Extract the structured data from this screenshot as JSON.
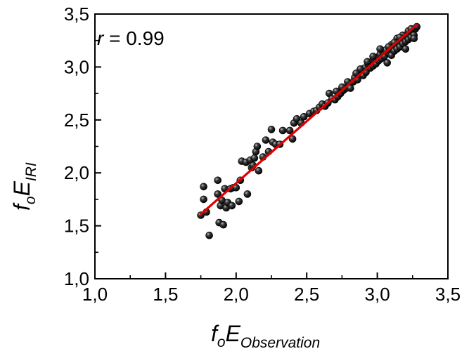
{
  "chart_data": {
    "type": "scatter",
    "title": "",
    "xlabel": {
      "main_f": "f",
      "sub_o": "o",
      "main_E": "E",
      "sub": "Observation"
    },
    "ylabel": {
      "main_f": "f",
      "sub_o": "o",
      "main_E": "E",
      "sub": "IRI"
    },
    "xlim": [
      1.0,
      3.5
    ],
    "ylim": [
      1.0,
      3.5
    ],
    "xticks": [
      1.0,
      1.5,
      2.0,
      2.5,
      3.0,
      3.5
    ],
    "yticks": [
      1.0,
      1.5,
      2.0,
      2.5,
      3.0,
      3.5
    ],
    "xtick_labels": [
      "1,0",
      "1,5",
      "2,0",
      "2,5",
      "3,0",
      "3,5"
    ],
    "ytick_labels": [
      "1,0",
      "1,5",
      "2,0",
      "2,5",
      "3,0",
      "3,5"
    ],
    "annotation": {
      "r_symbol": "r",
      "r_text": " = 0.99"
    },
    "grid": false,
    "colors": {
      "points": "#1a1a1a",
      "fit_line": "#e00000",
      "axes": "#000000"
    },
    "fit_line": {
      "x": [
        1.75,
        3.28
      ],
      "y": [
        1.61,
        3.4
      ]
    },
    "series": [
      {
        "points": [
          [
            1.75,
            1.6
          ],
          [
            1.77,
            1.87
          ],
          [
            1.77,
            1.75
          ],
          [
            1.79,
            1.63
          ],
          [
            1.81,
            1.41
          ],
          [
            1.87,
            1.93
          ],
          [
            1.87,
            1.8
          ],
          [
            1.88,
            1.53
          ],
          [
            1.89,
            1.69
          ],
          [
            1.9,
            1.74
          ],
          [
            1.91,
            1.51
          ],
          [
            1.92,
            1.85
          ],
          [
            1.93,
            1.67
          ],
          [
            1.94,
            1.72
          ],
          [
            1.96,
            1.85
          ],
          [
            1.97,
            1.69
          ],
          [
            1.98,
            1.86
          ],
          [
            2.0,
            1.86
          ],
          [
            2.02,
            1.73
          ],
          [
            2.03,
            1.93
          ],
          [
            2.04,
            2.11
          ],
          [
            2.07,
            2.1
          ],
          [
            2.08,
            1.8
          ],
          [
            2.1,
            2.12
          ],
          [
            2.11,
            2.05
          ],
          [
            2.12,
            2.07
          ],
          [
            2.13,
            2.14
          ],
          [
            2.14,
            2.2
          ],
          [
            2.15,
            2.25
          ],
          [
            2.16,
            2.02
          ],
          [
            2.19,
            2.15
          ],
          [
            2.21,
            2.31
          ],
          [
            2.23,
            2.2
          ],
          [
            2.25,
            2.41
          ],
          [
            2.26,
            2.29
          ],
          [
            2.28,
            2.27
          ],
          [
            2.31,
            2.27
          ],
          [
            2.33,
            2.4
          ],
          [
            2.38,
            2.4
          ],
          [
            2.4,
            2.32
          ],
          [
            2.41,
            2.47
          ],
          [
            2.43,
            2.51
          ],
          [
            2.46,
            2.47
          ],
          [
            2.48,
            2.53
          ],
          [
            2.52,
            2.56
          ],
          [
            2.55,
            2.58
          ],
          [
            2.57,
            2.59
          ],
          [
            2.59,
            2.62
          ],
          [
            2.61,
            2.65
          ],
          [
            2.63,
            2.63
          ],
          [
            2.65,
            2.66
          ],
          [
            2.66,
            2.75
          ],
          [
            2.68,
            2.7
          ],
          [
            2.7,
            2.69
          ],
          [
            2.72,
            2.72
          ],
          [
            2.74,
            2.75
          ],
          [
            2.76,
            2.78
          ],
          [
            2.78,
            2.8
          ],
          [
            2.8,
            2.82
          ],
          [
            2.81,
            2.8
          ],
          [
            2.83,
            2.86
          ],
          [
            2.84,
            2.9
          ],
          [
            2.86,
            2.88
          ],
          [
            2.87,
            2.93
          ],
          [
            2.89,
            2.96
          ],
          [
            2.9,
            2.92
          ],
          [
            2.91,
            2.99
          ],
          [
            2.92,
            2.95
          ],
          [
            2.94,
            3.02
          ],
          [
            2.95,
            2.99
          ],
          [
            2.96,
            3.05
          ],
          [
            2.97,
            3.01
          ],
          [
            2.98,
            3.07
          ],
          [
            2.99,
            3.03
          ],
          [
            3.0,
            3.09
          ],
          [
            3.01,
            3.06
          ],
          [
            3.02,
            3.12
          ],
          [
            3.03,
            3.08
          ],
          [
            3.04,
            3.14
          ],
          [
            3.05,
            3.1
          ],
          [
            3.07,
            3.04
          ],
          [
            3.08,
            3.13
          ],
          [
            3.09,
            3.17
          ],
          [
            3.1,
            3.11
          ],
          [
            3.11,
            3.19
          ],
          [
            3.12,
            3.15
          ],
          [
            3.13,
            3.21
          ],
          [
            3.14,
            3.17
          ],
          [
            3.15,
            3.23
          ],
          [
            3.16,
            3.19
          ],
          [
            3.17,
            3.25
          ],
          [
            3.18,
            3.22
          ],
          [
            3.19,
            3.27
          ],
          [
            3.2,
            3.24
          ],
          [
            3.21,
            3.29
          ],
          [
            3.22,
            3.26
          ],
          [
            3.23,
            3.31
          ],
          [
            3.24,
            3.28
          ],
          [
            3.25,
            3.33
          ],
          [
            3.26,
            3.3
          ],
          [
            3.27,
            3.36
          ],
          [
            3.28,
            3.38
          ],
          [
            3.22,
            3.34
          ],
          [
            3.18,
            3.3
          ],
          [
            3.14,
            3.27
          ],
          [
            3.1,
            3.21
          ],
          [
            3.06,
            3.16
          ],
          [
            3.02,
            3.17
          ],
          [
            2.97,
            3.1
          ],
          [
            2.93,
            3.05
          ],
          [
            2.88,
            2.98
          ],
          [
            2.85,
            2.94
          ],
          [
            2.79,
            2.86
          ],
          [
            2.75,
            2.81
          ],
          [
            2.71,
            2.77
          ],
          [
            3.2,
            3.17
          ],
          [
            3.24,
            3.36
          ],
          [
            3.26,
            3.27
          ],
          [
            3.16,
            3.28
          ],
          [
            3.12,
            3.23
          ],
          [
            3.08,
            3.19
          ]
        ]
      }
    ]
  }
}
